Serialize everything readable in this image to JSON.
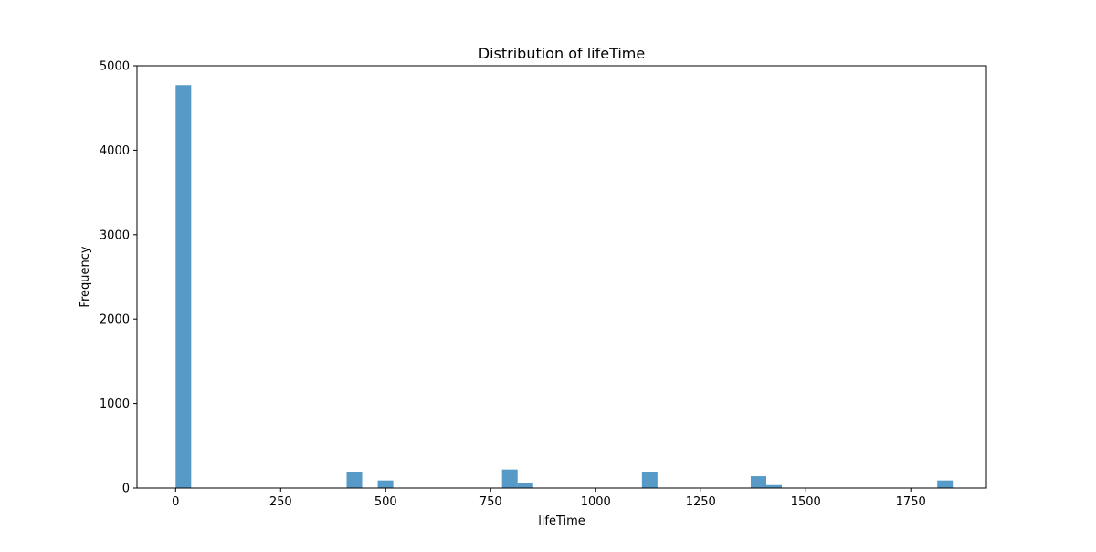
{
  "chart_data": {
    "type": "bar",
    "title": "Distribution of lifeTime",
    "xlabel": "lifeTime",
    "ylabel": "Frequency",
    "xlim": [
      -92,
      1930
    ],
    "ylim": [
      0,
      5000
    ],
    "xticks": [
      0,
      250,
      500,
      750,
      1000,
      1250,
      1500,
      1750
    ],
    "yticks": [
      0,
      1000,
      2000,
      3000,
      4000,
      5000
    ],
    "bin_width": 37,
    "bins": [
      {
        "start": 0,
        "end": 37,
        "value": 4770
      },
      {
        "start": 407,
        "end": 444,
        "value": 185
      },
      {
        "start": 481,
        "end": 518,
        "value": 90
      },
      {
        "start": 777,
        "end": 814,
        "value": 220
      },
      {
        "start": 814,
        "end": 851,
        "value": 55
      },
      {
        "start": 1110,
        "end": 1147,
        "value": 185
      },
      {
        "start": 1369,
        "end": 1406,
        "value": 140
      },
      {
        "start": 1406,
        "end": 1443,
        "value": 35
      },
      {
        "start": 1813,
        "end": 1850,
        "value": 90
      }
    ],
    "bar_color": "#1f77b4",
    "bar_opacity": 0.75,
    "grid": false,
    "legend": false
  }
}
